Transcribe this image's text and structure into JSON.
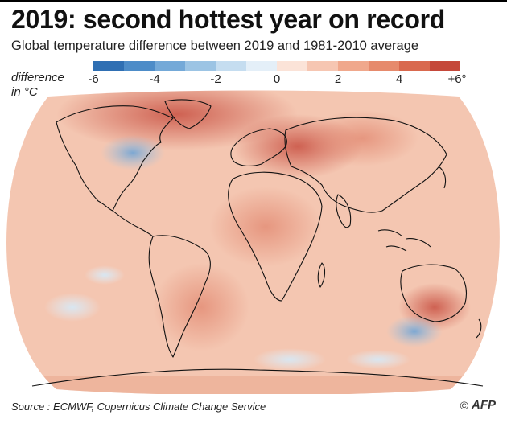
{
  "header": {
    "title": "2019: second hottest year on record",
    "subtitle": "Global temperature difference between 2019 and 1981-2010 average"
  },
  "legend": {
    "title_line1": "difference",
    "title_line2": "in °C",
    "ticks": [
      {
        "label": "-6",
        "value": -6
      },
      {
        "label": "-4",
        "value": -4
      },
      {
        "label": "-2",
        "value": -2
      },
      {
        "label": "0",
        "value": 0
      },
      {
        "label": "2",
        "value": 2
      },
      {
        "label": "4",
        "value": 4
      },
      {
        "label": "+6°",
        "value": 6
      }
    ],
    "colors": [
      "#2f6fb3",
      "#4d8cc8",
      "#74a9d8",
      "#9cc4e4",
      "#c5ddf0",
      "#e4eff8",
      "#fbe3d8",
      "#f6c6b2",
      "#f0a88c",
      "#e68a6c",
      "#d9694e",
      "#c5483a"
    ]
  },
  "map": {
    "ocean_base_color": "#f4c6b1",
    "regions": [
      {
        "name": "north-atlantic-cold-patch",
        "anomaly": -3
      },
      {
        "name": "southern-indian-ocean-cold-patch",
        "anomaly": -2
      },
      {
        "name": "arctic-warm",
        "anomaly": 5
      },
      {
        "name": "siberia-warm",
        "anomaly": 4
      },
      {
        "name": "australia-warm",
        "anomaly": 3
      }
    ]
  },
  "footer": {
    "source": "Source : ECMWF, Copernicus Climate Change Service",
    "copyright": "©",
    "agency": "AFP"
  }
}
